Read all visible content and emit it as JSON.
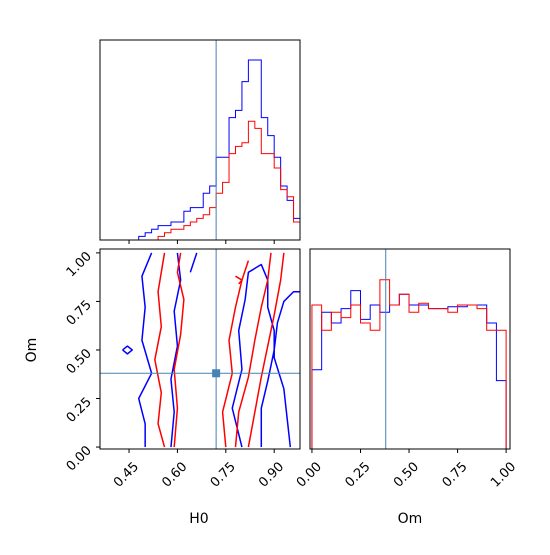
{
  "chart_data": {
    "type": "corner",
    "truth": {
      "H0": 0.72,
      "Om": 0.38
    },
    "colors": {
      "truth": "#4682b4",
      "series_a": "#0000ff",
      "series_b": "#ff0000"
    },
    "axes": {
      "H0": {
        "label": "H0",
        "range": [
          0.36,
          0.98
        ],
        "ticks": [
          0.45,
          0.6,
          0.75,
          0.9
        ],
        "tick_labels": [
          "0.45",
          "0.60",
          "0.75",
          "0.90"
        ]
      },
      "Om": {
        "label": "Om",
        "range": [
          -0.01,
          1.02
        ],
        "ticks": [
          0.0,
          0.25,
          0.5,
          0.75,
          1.0
        ],
        "tick_labels": [
          "0.00",
          "0.25",
          "0.50",
          "0.75",
          "1.00"
        ]
      }
    },
    "hist_H0": {
      "bin_edges": [
        0.36,
        0.38,
        0.4,
        0.42,
        0.44,
        0.46,
        0.48,
        0.5,
        0.52,
        0.54,
        0.56,
        0.58,
        0.6,
        0.62,
        0.64,
        0.66,
        0.68,
        0.7,
        0.72,
        0.74,
        0.76,
        0.78,
        0.8,
        0.82,
        0.84,
        0.86,
        0.88,
        0.9,
        0.92,
        0.94,
        0.96,
        0.98
      ],
      "series": [
        {
          "color": "blue",
          "values": [
            0,
            0,
            0,
            0,
            0,
            0,
            0.02,
            0.04,
            0.06,
            0.08,
            0.08,
            0.1,
            0.1,
            0.16,
            0.18,
            0.18,
            0.26,
            0.3,
            0.46,
            0.46,
            0.68,
            0.72,
            0.88,
            1.0,
            1.0,
            0.68,
            0.58,
            0.46,
            0.3,
            0.22,
            0.12
          ]
        },
        {
          "color": "red",
          "values": [
            0,
            0,
            0,
            0,
            0,
            0,
            0,
            0,
            0,
            0.02,
            0.04,
            0.06,
            0.06,
            0.08,
            0.1,
            0.12,
            0.14,
            0.18,
            0.26,
            0.32,
            0.48,
            0.52,
            0.54,
            0.66,
            0.62,
            0.48,
            0.48,
            0.4,
            0.28,
            0.24,
            0.1
          ]
        }
      ]
    },
    "hist_Om": {
      "bin_edges": [
        0.0,
        0.05,
        0.1,
        0.15,
        0.2,
        0.25,
        0.3,
        0.35,
        0.4,
        0.45,
        0.5,
        0.55,
        0.6,
        0.65,
        0.7,
        0.75,
        0.8,
        0.85,
        0.9,
        0.95,
        1.0
      ],
      "series": [
        {
          "color": "blue",
          "values": [
            0.44,
            0.76,
            0.7,
            0.78,
            0.88,
            0.72,
            0.8,
            0.76,
            0.8,
            0.86,
            0.8,
            0.8,
            0.78,
            0.78,
            0.79,
            0.79,
            0.8,
            0.8,
            0.7,
            0.38
          ]
        },
        {
          "color": "red",
          "values": [
            0.8,
            0.66,
            0.76,
            0.73,
            0.8,
            0.7,
            0.66,
            0.94,
            0.8,
            0.86,
            0.76,
            0.81,
            0.78,
            0.78,
            0.76,
            0.8,
            0.8,
            0.78,
            0.66,
            0.66
          ]
        }
      ]
    },
    "contours": [
      {
        "color": "blue",
        "points": [
          [
            0.5,
            0.0
          ],
          [
            0.5,
            0.12
          ],
          [
            0.48,
            0.25
          ],
          [
            0.52,
            0.38
          ],
          [
            0.49,
            0.55
          ],
          [
            0.5,
            0.72
          ],
          [
            0.49,
            0.88
          ],
          [
            0.52,
            1.0
          ]
        ]
      },
      {
        "color": "blue",
        "points": [
          [
            0.58,
            0.0
          ],
          [
            0.59,
            0.18
          ],
          [
            0.58,
            0.35
          ],
          [
            0.6,
            0.52
          ],
          [
            0.59,
            0.7
          ],
          [
            0.61,
            0.86
          ],
          [
            0.6,
            1.0
          ]
        ]
      },
      {
        "color": "blue",
        "points": [
          [
            0.66,
            1.0
          ],
          [
            0.64,
            0.9
          ]
        ]
      },
      {
        "color": "blue",
        "points": [
          [
            0.8,
            0.0
          ],
          [
            0.77,
            0.2
          ],
          [
            0.8,
            0.4
          ],
          [
            0.79,
            0.6
          ],
          [
            0.81,
            0.76
          ],
          [
            0.82,
            0.9
          ],
          [
            0.86,
            0.94
          ],
          [
            0.88,
            0.86
          ],
          [
            0.88,
            0.72
          ],
          [
            0.9,
            0.6
          ],
          [
            0.9,
            0.46
          ],
          [
            0.93,
            0.3
          ],
          [
            0.94,
            0.15
          ],
          [
            0.95,
            0.0
          ]
        ]
      },
      {
        "color": "blue",
        "points": [
          [
            0.86,
            0.0
          ],
          [
            0.86,
            0.2
          ],
          [
            0.88,
            0.34
          ],
          [
            0.9,
            0.5
          ],
          [
            0.91,
            0.64
          ],
          [
            0.93,
            0.75
          ],
          [
            0.96,
            0.8
          ],
          [
            0.98,
            0.8
          ]
        ]
      },
      {
        "color": "blue",
        "points": [
          [
            0.43,
            0.5
          ],
          [
            0.445,
            0.48
          ],
          [
            0.46,
            0.5
          ],
          [
            0.445,
            0.52
          ],
          [
            0.43,
            0.5
          ]
        ]
      },
      {
        "color": "red",
        "points": [
          [
            0.56,
            0.0
          ],
          [
            0.54,
            0.12
          ],
          [
            0.55,
            0.28
          ],
          [
            0.53,
            0.45
          ],
          [
            0.55,
            0.62
          ],
          [
            0.54,
            0.8
          ],
          [
            0.56,
            1.0
          ]
        ]
      },
      {
        "color": "red",
        "points": [
          [
            0.59,
            0.0
          ],
          [
            0.6,
            0.2
          ],
          [
            0.59,
            0.4
          ],
          [
            0.61,
            0.58
          ],
          [
            0.62,
            0.76
          ],
          [
            0.6,
            0.9
          ],
          [
            0.61,
            1.0
          ]
        ]
      },
      {
        "color": "red",
        "points": [
          [
            0.75,
            0.0
          ],
          [
            0.74,
            0.18
          ],
          [
            0.77,
            0.38
          ],
          [
            0.76,
            0.55
          ],
          [
            0.78,
            0.72
          ],
          [
            0.8,
            0.86
          ],
          [
            0.82,
            0.96
          ]
        ]
      },
      {
        "color": "red",
        "points": [
          [
            0.78,
            0.0
          ],
          [
            0.79,
            0.18
          ],
          [
            0.82,
            0.36
          ],
          [
            0.84,
            0.55
          ],
          [
            0.86,
            0.72
          ],
          [
            0.88,
            0.86
          ],
          [
            0.89,
            1.0
          ]
        ]
      },
      {
        "color": "red",
        "points": [
          [
            0.82,
            0.0
          ],
          [
            0.84,
            0.18
          ],
          [
            0.86,
            0.36
          ],
          [
            0.88,
            0.52
          ],
          [
            0.9,
            0.68
          ],
          [
            0.92,
            0.86
          ],
          [
            0.93,
            1.0
          ]
        ]
      },
      {
        "color": "red",
        "points": [
          [
            0.78,
            0.88
          ],
          [
            0.8,
            0.86
          ],
          [
            0.79,
            0.84
          ]
        ]
      }
    ]
  }
}
